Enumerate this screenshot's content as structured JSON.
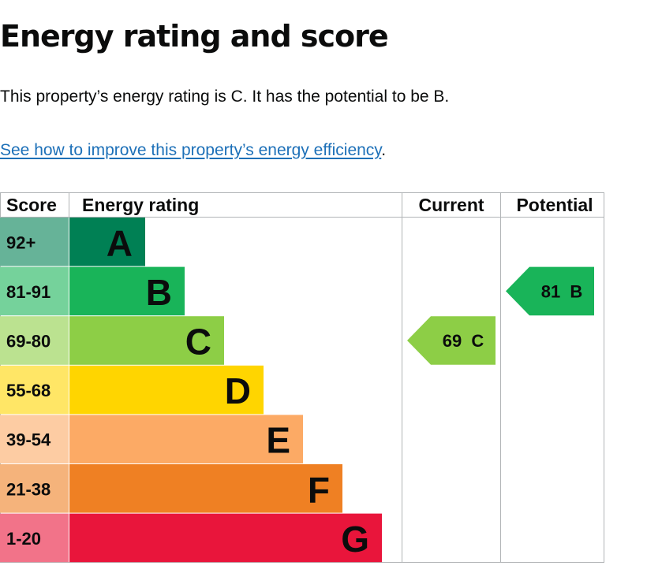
{
  "page": {
    "title": "Energy rating and score",
    "intro": "This property’s energy rating is C. It has the potential to be B.",
    "link_text": "See how to improve this property’s energy efficiency",
    "link_suffix": "."
  },
  "chart_data": {
    "type": "table",
    "headers": {
      "score": "Score",
      "rating": "Energy rating",
      "current": "Current",
      "potential": "Potential"
    },
    "bands": [
      {
        "score": "92+",
        "letter": "A",
        "color": "#008054",
        "score_bg": "#66b398"
      },
      {
        "score": "81-91",
        "letter": "B",
        "color": "#19b459",
        "score_bg": "#75d29b"
      },
      {
        "score": "69-80",
        "letter": "C",
        "color": "#8dce46",
        "score_bg": "#bbe290"
      },
      {
        "score": "55-68",
        "letter": "D",
        "color": "#ffd500",
        "score_bg": "#ffe666"
      },
      {
        "score": "39-54",
        "letter": "E",
        "color": "#fcaa65",
        "score_bg": "#fdcca3"
      },
      {
        "score": "21-38",
        "letter": "F",
        "color": "#ef8023",
        "score_bg": "#f5b37b"
      },
      {
        "score": "1-20",
        "letter": "G",
        "color": "#e9153b",
        "score_bg": "#f27389"
      }
    ],
    "current": {
      "label": "69  C",
      "score": 69,
      "band": "C",
      "color": "#8dce46"
    },
    "potential": {
      "label": "81  B",
      "score": 81,
      "band": "B",
      "color": "#19b459"
    }
  }
}
